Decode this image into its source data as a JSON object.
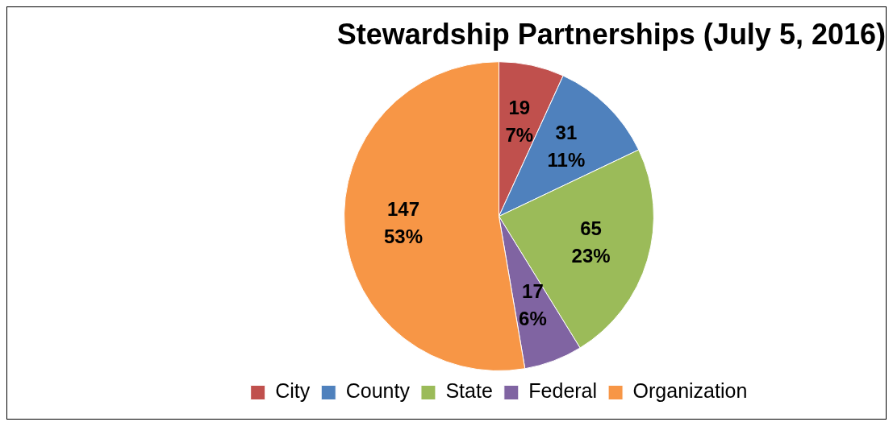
{
  "chart_data": {
    "type": "pie",
    "title": "Stewardship Partnerships (July 5, 2016)",
    "categories": [
      "City",
      "County",
      "State",
      "Federal",
      "Organization"
    ],
    "values": [
      19,
      31,
      65,
      17,
      147
    ],
    "colors": [
      "#c0504d",
      "#4f81bd",
      "#9bbb59",
      "#8064a2",
      "#f79646"
    ],
    "value_labels": [
      "19\n7%",
      "31\n11%",
      "65\n23%",
      "17\n6%",
      "147\n53%"
    ],
    "legend": "bottom"
  }
}
